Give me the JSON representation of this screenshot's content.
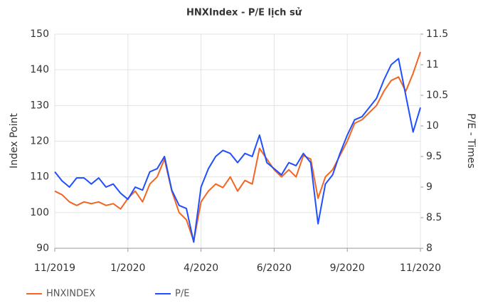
{
  "chart_data": {
    "type": "line",
    "title": "HNXIndex - P/E lịch sử",
    "ylabel": "Index Point",
    "y2label": "P/E - Times",
    "categories": [
      "11/2019",
      null,
      null,
      null,
      null,
      null,
      null,
      null,
      null,
      null,
      "1/2020",
      null,
      null,
      null,
      null,
      null,
      null,
      null,
      null,
      null,
      "4/2020",
      null,
      null,
      null,
      null,
      null,
      null,
      null,
      null,
      null,
      "6/2020",
      null,
      null,
      null,
      null,
      null,
      null,
      null,
      null,
      null,
      "9/2020",
      null,
      null,
      null,
      null,
      null,
      null,
      null,
      null,
      null,
      "11/2020"
    ],
    "series": [
      {
        "name": "HNXINDEX",
        "color": "#f26522",
        "axis": "y",
        "values": [
          106,
          105,
          103,
          102,
          103,
          102.5,
          103,
          102,
          102.5,
          101,
          104,
          106,
          103,
          108,
          110,
          115,
          106,
          100,
          98,
          92,
          103,
          106,
          108,
          107,
          110,
          106,
          109,
          108,
          118,
          115,
          112,
          110,
          112,
          110,
          116,
          115,
          104,
          110,
          112,
          116,
          120,
          125,
          126,
          128,
          130,
          134,
          137,
          138,
          134,
          139,
          145
        ]
      },
      {
        "name": "P/E",
        "color": "#1f4fff",
        "axis": "y2",
        "values": [
          9.25,
          9.1,
          9.0,
          9.15,
          9.15,
          9.05,
          9.15,
          9.0,
          9.05,
          8.9,
          8.8,
          9.0,
          8.95,
          9.25,
          9.3,
          9.5,
          8.95,
          8.7,
          8.65,
          8.1,
          9.0,
          9.3,
          9.5,
          9.6,
          9.55,
          9.4,
          9.55,
          9.5,
          9.85,
          9.4,
          9.3,
          9.2,
          9.4,
          9.35,
          9.55,
          9.4,
          8.4,
          9.05,
          9.2,
          9.55,
          9.85,
          10.1,
          10.15,
          10.3,
          10.45,
          10.75,
          11.0,
          11.1,
          10.5,
          9.9,
          10.3
        ]
      }
    ],
    "ylim": [
      90,
      150
    ],
    "yticks": [
      90,
      100,
      110,
      120,
      130,
      140,
      150
    ],
    "y2lim": [
      8,
      11.5
    ],
    "y2ticks": [
      8,
      8.5,
      9,
      9.5,
      10,
      10.5,
      11,
      11.5
    ],
    "grid": true,
    "legend": "bottom-left"
  }
}
